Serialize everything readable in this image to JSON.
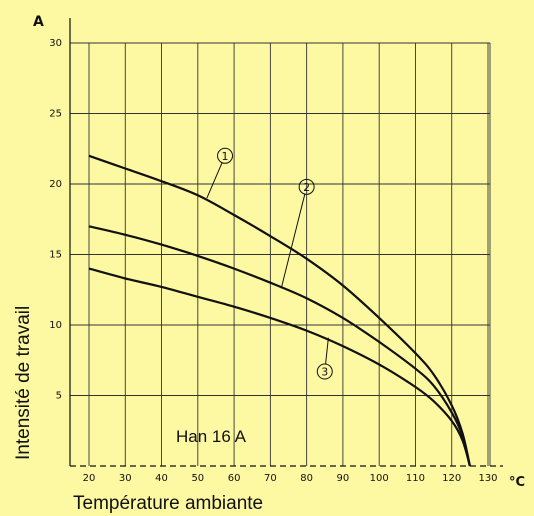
{
  "chart_data": {
    "type": "line",
    "title": "",
    "xlabel": "Température ambiante",
    "ylabel": "Intensité de travail",
    "x_unit": "°C",
    "y_unit": "A",
    "xlim": [
      20,
      135
    ],
    "ylim": [
      0,
      30
    ],
    "xticks": [
      20,
      30,
      40,
      50,
      60,
      70,
      80,
      90,
      100,
      110,
      120,
      130
    ],
    "yticks": [
      5,
      10,
      15,
      20,
      25,
      30
    ],
    "grid": true,
    "annotation": "Han 16 A",
    "series": [
      {
        "name": "1",
        "points": [
          [
            20,
            22.0
          ],
          [
            30,
            21.1
          ],
          [
            40,
            20.2
          ],
          [
            50,
            19.2
          ],
          [
            60,
            17.8
          ],
          [
            70,
            16.3
          ],
          [
            80,
            14.7
          ],
          [
            90,
            12.8
          ],
          [
            100,
            10.5
          ],
          [
            110,
            8.0
          ],
          [
            115,
            6.5
          ],
          [
            120,
            4.3
          ],
          [
            123,
            2.3
          ],
          [
            125,
            0
          ]
        ]
      },
      {
        "name": "2",
        "points": [
          [
            20,
            17.0
          ],
          [
            30,
            16.4
          ],
          [
            40,
            15.7
          ],
          [
            50,
            14.9
          ],
          [
            60,
            14.0
          ],
          [
            70,
            13.0
          ],
          [
            80,
            11.9
          ],
          [
            90,
            10.5
          ],
          [
            100,
            8.8
          ],
          [
            110,
            6.9
          ],
          [
            115,
            5.7
          ],
          [
            120,
            3.8
          ],
          [
            123,
            2.1
          ],
          [
            125,
            0
          ]
        ]
      },
      {
        "name": "3",
        "points": [
          [
            20,
            14.0
          ],
          [
            30,
            13.3
          ],
          [
            40,
            12.7
          ],
          [
            50,
            12.0
          ],
          [
            60,
            11.3
          ],
          [
            70,
            10.5
          ],
          [
            80,
            9.6
          ],
          [
            90,
            8.5
          ],
          [
            100,
            7.2
          ],
          [
            110,
            5.6
          ],
          [
            115,
            4.6
          ],
          [
            120,
            3.2
          ],
          [
            123,
            1.8
          ],
          [
            125,
            0
          ]
        ]
      }
    ],
    "markers": [
      {
        "label": "1",
        "at_x": 52.5,
        "at_y": 19.0,
        "label_x": 57.5,
        "label_y": 22.0
      },
      {
        "label": "2",
        "at_x": 73.0,
        "at_y": 12.6,
        "label_x": 80.0,
        "label_y": 19.8
      },
      {
        "label": "3",
        "at_x": 86.0,
        "at_y": 9.1,
        "label_x": 85.0,
        "label_y": 6.7
      }
    ]
  }
}
